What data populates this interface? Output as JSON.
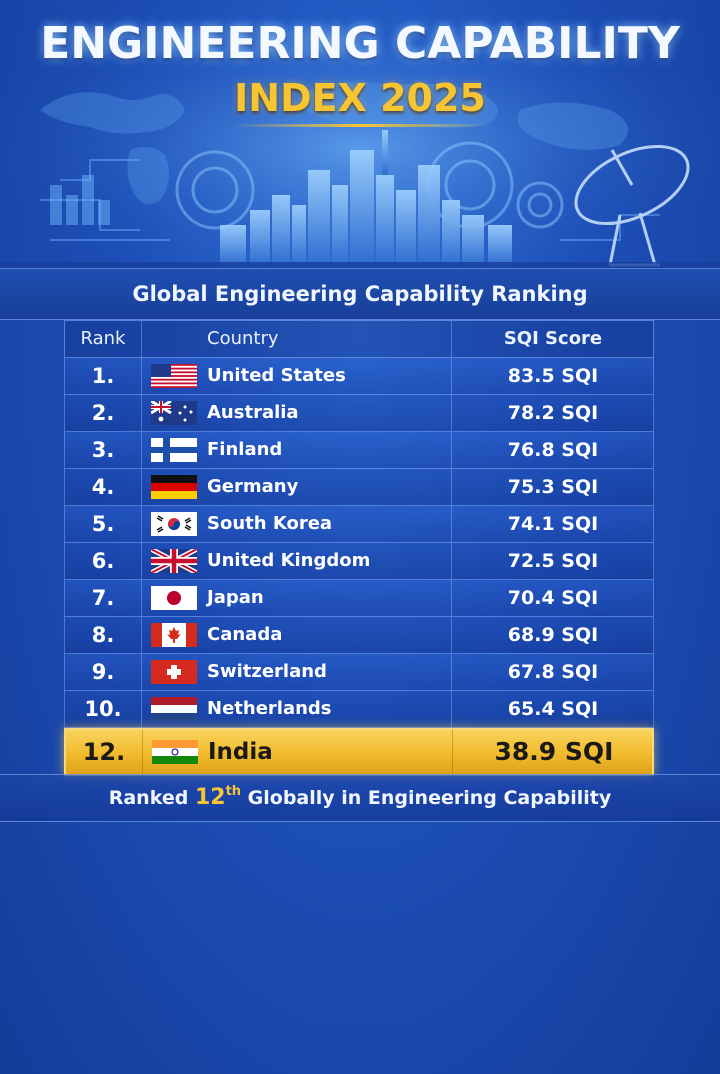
{
  "header": {
    "title_line1": "ENGINEERING CAPABILITY",
    "title_line2": "INDEX 2025"
  },
  "banner": {
    "subtitle": "Global Engineering Capability Ranking"
  },
  "table": {
    "columns": {
      "rank": "Rank",
      "country": "Country",
      "score": "SQI Score"
    },
    "rows": [
      {
        "rank": "1.",
        "country": "United States",
        "score": "83.5 SQI",
        "flag": "us-flag-icon"
      },
      {
        "rank": "2.",
        "country": "Australia",
        "score": "78.2 SQI",
        "flag": "australia-flag-icon"
      },
      {
        "rank": "3.",
        "country": "Finland",
        "score": "76.8 SQI",
        "flag": "finland-flag-icon"
      },
      {
        "rank": "4.",
        "country": "Germany",
        "score": "75.3 SQI",
        "flag": "germany-flag-icon"
      },
      {
        "rank": "5.",
        "country": "South Korea",
        "score": "74.1 SQI",
        "flag": "south-korea-flag-icon"
      },
      {
        "rank": "6.",
        "country": "United Kingdom",
        "score": "72.5 SQI",
        "flag": "uk-flag-icon"
      },
      {
        "rank": "7.",
        "country": "Japan",
        "score": "70.4 SQI",
        "flag": "japan-flag-icon"
      },
      {
        "rank": "8.",
        "country": "Canada",
        "score": "68.9 SQI",
        "flag": "canada-flag-icon"
      },
      {
        "rank": "9.",
        "country": "Switzerland",
        "score": "67.8 SQI",
        "flag": "switzerland-flag-icon"
      },
      {
        "rank": "10.",
        "country": "Netherlands",
        "score": "65.4 SQI",
        "flag": "netherlands-flag-icon"
      }
    ],
    "highlight": {
      "rank": "12.",
      "country": "India",
      "score": "38.9 SQI",
      "flag": "india-flag-icon"
    }
  },
  "footer": {
    "prefix": "Ranked ",
    "rank_number": "12",
    "rank_suffix": "th",
    "suffix": " Globally in Engineering Capability"
  },
  "colors": {
    "accent_gold": "#f7c531",
    "background_blue": "#1d4fb8",
    "highlight_row": "#f1bb2c"
  }
}
